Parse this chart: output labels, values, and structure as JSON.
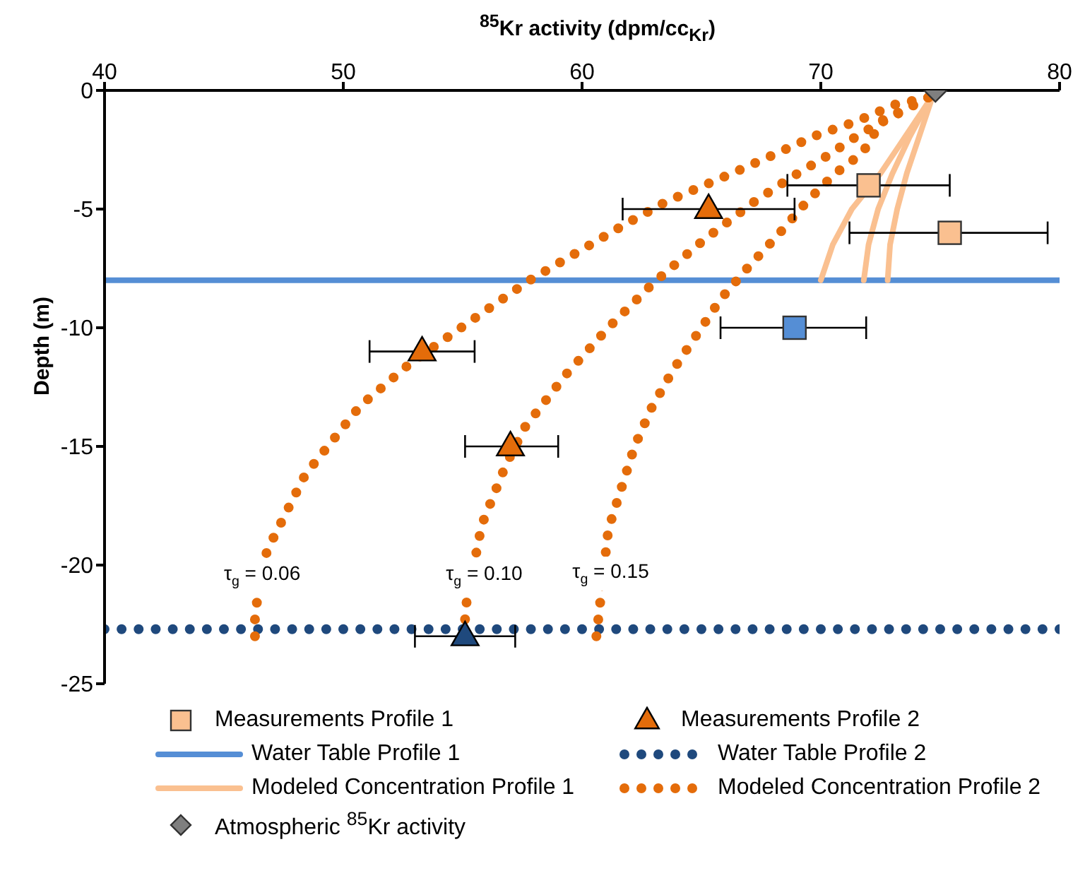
{
  "chart_data": {
    "type": "line",
    "xlabel": "$^{85}$Kr activity (dpm/cc$_{Kr}$)",
    "ylabel": "Depth (m)",
    "xlim": [
      40,
      80
    ],
    "xticks": [
      40,
      50,
      60,
      70,
      80
    ],
    "ylim": [
      -25,
      0
    ],
    "yticks": [
      0,
      -5,
      -10,
      -15,
      -20,
      -25
    ],
    "grid": false,
    "legend": "bottom",
    "annotations": [
      {
        "text": "τ$_{g}$ = 0.06",
        "x": 46.6,
        "y": -20.4
      },
      {
        "text": "τ$_{g}$ = 0.10",
        "x": 55.9,
        "y": -20.4
      },
      {
        "text": "τ$_{g}$ = 0.15",
        "x": 61.2,
        "y": -20.3
      }
    ],
    "series": [
      {
        "type": "scatter",
        "name": "Measurements Profile 1",
        "color": "#fac090",
        "colors": [
          "#fac090",
          "#fac090",
          "#558ed5"
        ],
        "marker": "square",
        "x": [
          72.0,
          75.4,
          68.9
        ],
        "values": [
          -4,
          -6,
          -10
        ],
        "xerrors": [
          [
            68.6,
            75.4
          ],
          [
            71.2,
            79.5
          ],
          [
            65.8,
            71.9
          ]
        ]
      },
      {
        "type": "scatter",
        "name": "Measurements Profile 2",
        "color": "#e46c0a",
        "colors": [
          "#e46c0a",
          "#e46c0a",
          "#e46c0a",
          "#1f497d"
        ],
        "marker": "triangle",
        "x": [
          65.3,
          53.3,
          57.0,
          55.1
        ],
        "values": [
          -5,
          -11,
          -15,
          -23
        ],
        "xerrors": [
          [
            61.7,
            68.9
          ],
          [
            51.1,
            55.5
          ],
          [
            55.1,
            59.0
          ],
          [
            53.0,
            57.2
          ]
        ]
      },
      {
        "name": "Water Table Profile 1",
        "color": "#558ed5",
        "line_style": "solid",
        "marker": "none",
        "x": [
          40,
          80
        ],
        "values": [
          -8,
          -8
        ]
      },
      {
        "name": "Water Table Profile 2",
        "color": "#1f497d",
        "line_style": "dotted",
        "marker": "none",
        "x": [
          40,
          80
        ],
        "values": [
          -22.7,
          -22.7
        ]
      },
      {
        "name": "Modeled Concentration Profile 1",
        "color": "#fac090",
        "line_style": "solid",
        "marker": "none",
        "x": [
          74.7,
          74.5,
          73.5,
          72.5,
          71.3,
          70.5,
          70.0
        ],
        "values": [
          0,
          -0.5,
          -2,
          -3.5,
          -5,
          -6.5,
          -8
        ]
      },
      {
        "name": "Modeled Concentration Profile 2",
        "color": "#e46c0a",
        "line_style": "dotted",
        "marker": "none",
        "x": [
          74.5,
          73.1,
          71.5,
          69.8,
          66.5,
          63.5,
          61.7,
          59.5,
          57.8,
          55.5,
          52.8,
          50.7,
          48.4,
          46.8,
          46.3,
          46.3
        ],
        "values": [
          -0.3,
          -0.6,
          -1.3,
          -1.9,
          -3.4,
          -4.7,
          -5.7,
          -7,
          -8,
          -9.6,
          -11.5,
          -13.3,
          -16.2,
          -19.4,
          -22,
          -23
        ]
      },
      {
        "type": "scatter",
        "name": "Atmospheric $^{85}$Kr activity",
        "color": "#7f7f7f",
        "marker": "diamond",
        "x": [
          74.8
        ],
        "values": [
          0
        ]
      },
      {
        "color": "#fac090",
        "line_style": "solid",
        "marker": "none",
        "x": [
          74.7,
          74.5,
          73.7,
          73.0,
          72.4,
          72.0,
          71.8
        ],
        "values": [
          0,
          -0.5,
          -2,
          -3.5,
          -5,
          -6.5,
          -8
        ]
      },
      {
        "color": "#fac090",
        "line_style": "solid",
        "marker": "none",
        "x": [
          74.7,
          74.6,
          74.1,
          73.6,
          73.2,
          72.9,
          72.8
        ],
        "values": [
          0,
          -0.5,
          -2,
          -3.5,
          -5,
          -6.5,
          -8
        ]
      },
      {
        "color": "#e46c0a",
        "line_style": "dotted",
        "marker": "none",
        "x": [
          74.5,
          71.7,
          70.2,
          68.7,
          67.2,
          65.1,
          63.0,
          61.1,
          59.3,
          57.6,
          56.8,
          55.8,
          55.1,
          55.1
        ],
        "values": [
          -0.3,
          -1.8,
          -2.8,
          -3.7,
          -4.7,
          -6.3,
          -8.1,
          -10,
          -12,
          -14.2,
          -15.8,
          -18.3,
          -21.9,
          -23
        ]
      },
      {
        "color": "#e46c0a",
        "line_style": "dotted",
        "marker": "none",
        "x": [
          74.5,
          72.5,
          72.0,
          71.4,
          70.6,
          69.4,
          68.2,
          67.0,
          65.8,
          64.8,
          63.8,
          62.9,
          62.2,
          61.1,
          60.7,
          60.6
        ],
        "values": [
          -0.3,
          -1.3,
          -2.3,
          -2.9,
          -3.5,
          -4.7,
          -6.1,
          -7.4,
          -8.8,
          -10.3,
          -11.8,
          -13.4,
          -15,
          -18.5,
          -22.1,
          -23
        ]
      }
    ]
  }
}
